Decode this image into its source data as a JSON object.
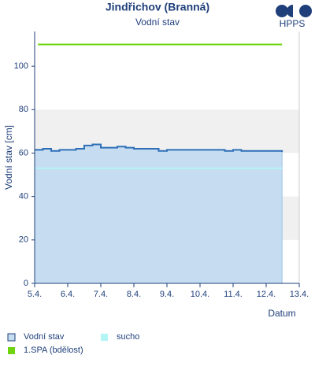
{
  "chart_data": {
    "type": "line",
    "title": "Jindřichov (Branná)",
    "subtitle": "Vodní stav",
    "logo_text": "HPPS",
    "y_label": "Vodní stav [cm]",
    "x_label": "Datum",
    "xlim": [
      5,
      13
    ],
    "xticks": [
      {
        "value": 5,
        "label": "5.4."
      },
      {
        "value": 6,
        "label": "6.4."
      },
      {
        "value": 7,
        "label": "7.4."
      },
      {
        "value": 8,
        "label": "8.4."
      },
      {
        "value": 9,
        "label": "9.4."
      },
      {
        "value": 10,
        "label": "10.4."
      },
      {
        "value": 11,
        "label": "11.4."
      },
      {
        "value": 12,
        "label": "12.4."
      },
      {
        "value": 13,
        "label": "13.4."
      }
    ],
    "ylim": [
      0,
      116
    ],
    "yticks": [
      0,
      20,
      40,
      60,
      80,
      100
    ],
    "grid": "alternate-bands",
    "series": [
      {
        "name": "Vodní stav",
        "color": "#2e6fb7",
        "area_color": "#c6dcf1",
        "x": [
          5,
          5.25,
          5.5,
          5.75,
          6,
          6.25,
          6.5,
          6.75,
          7,
          7.25,
          7.5,
          7.75,
          8,
          8.25,
          8.5,
          8.75,
          9,
          9.25,
          9.5,
          9.75,
          10,
          10.25,
          10.5,
          10.75,
          11,
          11.25,
          11.5,
          11.75,
          12,
          12.25,
          12.48
        ],
        "values": [
          61.5,
          62,
          61,
          61.5,
          61.5,
          62,
          63.5,
          64,
          62.5,
          62.5,
          63,
          62.5,
          62,
          62,
          62,
          61,
          61.5,
          61.5,
          61.5,
          61.5,
          61.5,
          61.5,
          61.5,
          61,
          61.5,
          61,
          61,
          61,
          61,
          61,
          60.5
        ]
      }
    ],
    "thresholds": [
      {
        "name": "sucho",
        "color": "#b3f5f5",
        "value": 53,
        "x": [
          5,
          12.48
        ]
      },
      {
        "name": "1.SPA (bdělost)",
        "color": "#6fd40f",
        "value": 110,
        "x": [
          5.1,
          12.48
        ]
      }
    ]
  }
}
